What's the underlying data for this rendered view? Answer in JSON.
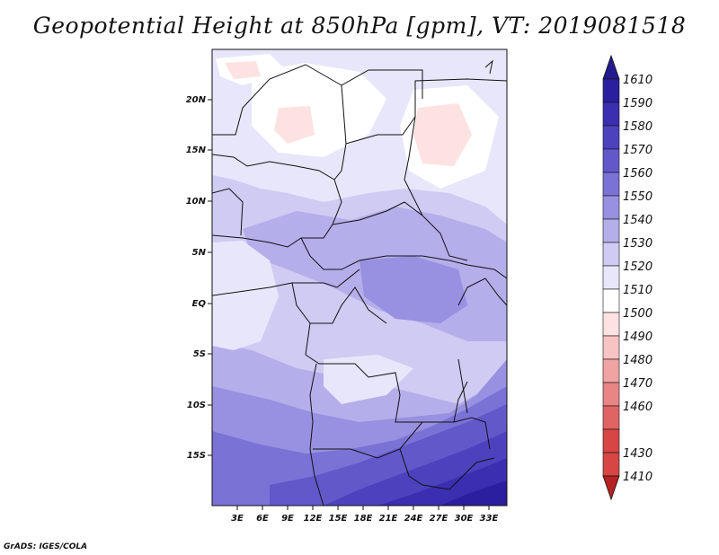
{
  "title": "Geopotential Height at 850hPa [gpm], VT: 2019081518",
  "footer": "GrADS: IGES/COLA",
  "map": {
    "lat_labels": [
      "20N",
      "15N",
      "10N",
      "5N",
      "EQ",
      "5S",
      "10S",
      "15S"
    ],
    "lon_labels": [
      "3E",
      "6E",
      "9E",
      "12E",
      "15E",
      "18E",
      "21E",
      "24E",
      "27E",
      "30E",
      "33E"
    ]
  },
  "colorbar": {
    "levels": [
      "1610",
      "1590",
      "1580",
      "1570",
      "1560",
      "1550",
      "1540",
      "1530",
      "1520",
      "1510",
      "1500",
      "1490",
      "1480",
      "1470",
      "1460",
      "1430",
      "1410"
    ],
    "colors": {
      "top_arrow": "#221a8c",
      "c1590": "#2a1f9e",
      "c1580": "#3a2fb0",
      "c1570": "#4d42be",
      "c1560": "#6358ca",
      "c1550": "#7b72d6",
      "c1540": "#9890e0",
      "c1530": "#b4aeea",
      "c1520": "#cfcbf2",
      "c1510": "#e8e6fa",
      "white": "#ffffff",
      "c1500": "#fde2e2",
      "c1490": "#f7c3c3",
      "c1480": "#efa3a3",
      "c1470": "#e88585",
      "c1460": "#e06464",
      "c1430": "#d84545",
      "bottom_arrow": "#b52323"
    }
  }
}
